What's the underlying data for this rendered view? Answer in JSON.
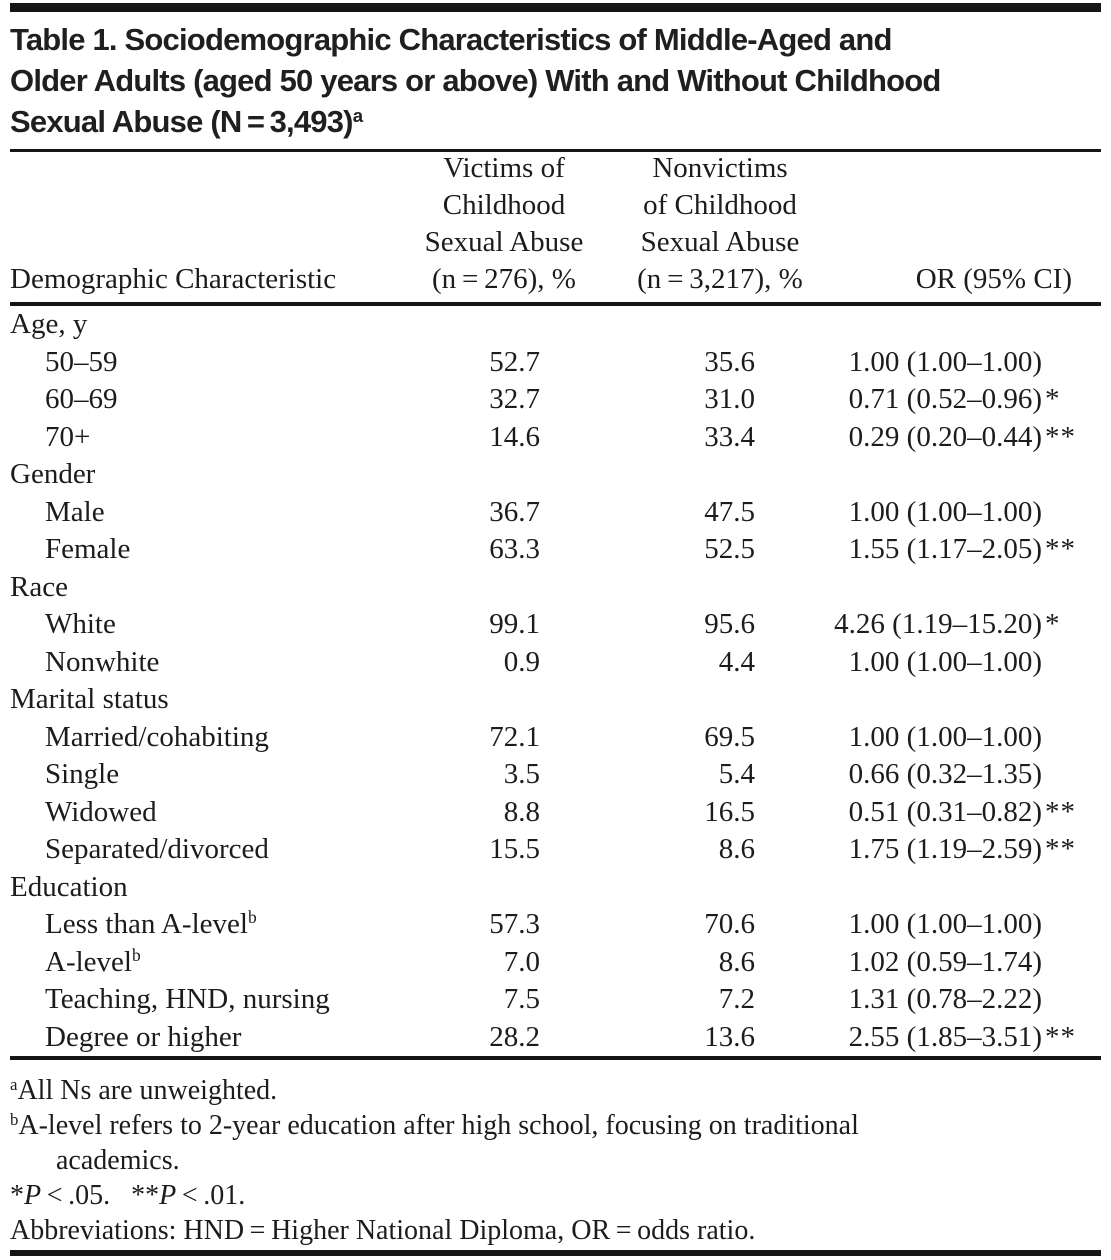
{
  "page": {
    "background_color": "#ffffff",
    "text_color": "#1c1c1c",
    "rule_color": "#161616"
  },
  "title": {
    "lines": [
      "Table 1. Sociodemographic Characteristics of Middle-Aged and",
      "Older Adults (aged 50 years or above) With and Without Childhood",
      "Sexual Abuse (N = 3,493)"
    ],
    "superscript": "a"
  },
  "table": {
    "header": {
      "col1": "Demographic Characteristic",
      "col2_lines": [
        "Victims of",
        "Childhood",
        "Sexual Abuse",
        "(n = 276), %"
      ],
      "col3_lines": [
        "Nonvictims",
        "of Childhood",
        "Sexual Abuse",
        "(n = 3,217), %"
      ],
      "col4": "OR (95% CI)"
    },
    "rows": [
      {
        "section": true,
        "label": "Age, y"
      },
      {
        "section": false,
        "label": "50–59",
        "victims": "52.7",
        "nonvictims": "35.6",
        "or": "1.00 (1.00–1.00)",
        "sig": ""
      },
      {
        "section": false,
        "label": "60–69",
        "victims": "32.7",
        "nonvictims": "31.0",
        "or": "0.71 (0.52–0.96)",
        "sig": "*"
      },
      {
        "section": false,
        "label": "70+",
        "victims": "14.6",
        "nonvictims": "33.4",
        "or": "0.29 (0.20–0.44)",
        "sig": "**"
      },
      {
        "section": true,
        "label": "Gender"
      },
      {
        "section": false,
        "label": "Male",
        "victims": "36.7",
        "nonvictims": "47.5",
        "or": "1.00 (1.00–1.00)",
        "sig": ""
      },
      {
        "section": false,
        "label": "Female",
        "victims": "63.3",
        "nonvictims": "52.5",
        "or": "1.55 (1.17–2.05)",
        "sig": "**"
      },
      {
        "section": true,
        "label": "Race"
      },
      {
        "section": false,
        "label": "White",
        "victims": "99.1",
        "nonvictims": "95.6",
        "or": "4.26 (1.19–15.20)",
        "sig": "*"
      },
      {
        "section": false,
        "label": "Nonwhite",
        "victims": "0.9",
        "nonvictims": "4.4",
        "or": "1.00 (1.00–1.00)",
        "sig": ""
      },
      {
        "section": true,
        "label": "Marital status"
      },
      {
        "section": false,
        "label": "Married/cohabiting",
        "victims": "72.1",
        "nonvictims": "69.5",
        "or": "1.00 (1.00–1.00)",
        "sig": ""
      },
      {
        "section": false,
        "label": "Single",
        "victims": "3.5",
        "nonvictims": "5.4",
        "or": "0.66 (0.32–1.35)",
        "sig": ""
      },
      {
        "section": false,
        "label": "Widowed",
        "victims": "8.8",
        "nonvictims": "16.5",
        "or": "0.51 (0.31–0.82)",
        "sig": "**"
      },
      {
        "section": false,
        "label": "Separated/divorced",
        "victims": "15.5",
        "nonvictims": "8.6",
        "or": "1.75 (1.19–2.59)",
        "sig": "**"
      },
      {
        "section": true,
        "label": "Education"
      },
      {
        "section": false,
        "label": "Less than A-level",
        "label_sup": "b",
        "victims": "57.3",
        "nonvictims": "70.6",
        "or": "1.00 (1.00–1.00)",
        "sig": ""
      },
      {
        "section": false,
        "label": "A-level",
        "label_sup": "b",
        "victims": "7.0",
        "nonvictims": "8.6",
        "or": "1.02 (0.59–1.74)",
        "sig": ""
      },
      {
        "section": false,
        "label": "Teaching, HND, nursing",
        "victims": "7.5",
        "nonvictims": "7.2",
        "or": "1.31 (0.78–2.22)",
        "sig": ""
      },
      {
        "section": false,
        "label": "Degree or higher",
        "victims": "28.2",
        "nonvictims": "13.6",
        "or": "2.55 (1.85–3.51)",
        "sig": "**"
      }
    ]
  },
  "footnotes": {
    "note_a": {
      "marker": "a",
      "lines": [
        "All Ns are unweighted."
      ]
    },
    "note_b": {
      "marker": "b",
      "lines": [
        "A-level refers to 2-year education after high school, focusing on traditional",
        "academics."
      ]
    },
    "significance": {
      "segments": [
        {
          "text": "*"
        },
        {
          "text": "P",
          "italic": true
        },
        {
          "text": " < .05.  "
        },
        {
          "text": "**"
        },
        {
          "text": "P",
          "italic": true
        },
        {
          "text": " < .01."
        }
      ]
    },
    "abbreviations": "Abbreviations: HND = Higher National Diploma, OR = odds ratio."
  }
}
